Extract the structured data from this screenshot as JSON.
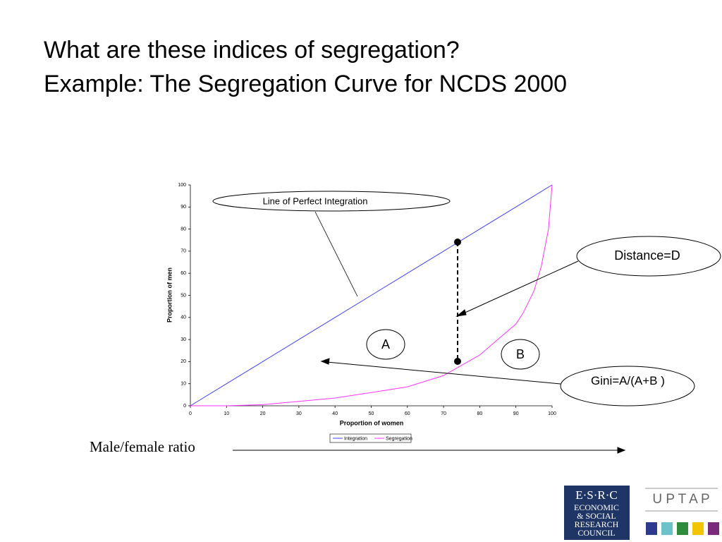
{
  "chart_data": {
    "type": "line",
    "title": "What are these indices of segregation?",
    "subtitle": "Example: The Segregation Curve for NCDS 2000",
    "x_label": "Proportion of women",
    "y_label": "Proportion of men",
    "x": [
      0,
      10,
      20,
      30,
      40,
      50,
      60,
      70,
      80,
      90,
      92,
      95,
      97,
      99,
      100
    ],
    "series": [
      {
        "name": "Integration",
        "color": "#4040ff",
        "values": [
          0,
          10,
          20,
          30,
          40,
          50,
          60,
          70,
          80,
          90,
          92,
          95,
          97,
          99,
          100
        ]
      },
      {
        "name": "Segregation",
        "color": "#ff33ff",
        "values": [
          0,
          0,
          0.5,
          2,
          3.5,
          6,
          8.6,
          13.7,
          23,
          37,
          42,
          52,
          63,
          80,
          100
        ]
      }
    ],
    "xlim": [
      0,
      100
    ],
    "ylim": [
      0,
      100
    ],
    "xticks": [
      0,
      10,
      20,
      30,
      40,
      50,
      60,
      70,
      80,
      90,
      100
    ],
    "yticks": [
      0,
      10,
      20,
      30,
      40,
      50,
      60,
      70,
      80,
      90,
      100
    ],
    "annotations": {
      "integration": "Line of Perfect Integration",
      "distance": "Distance=D",
      "a": "A",
      "b": "B",
      "gini": "Gini=A/(A+B )",
      "ratio": "Male/female ratio"
    }
  },
  "logos": {
    "esrc": [
      "E·S·R·C",
      "ECONOMIC",
      "& SOCIAL",
      "RESEARCH",
      "COUNCIL"
    ],
    "uptap": "U P T A P"
  }
}
